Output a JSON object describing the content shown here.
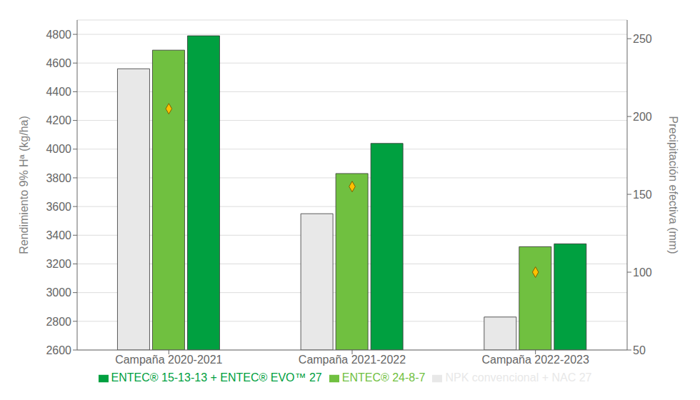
{
  "chart_data": {
    "type": "bar",
    "categories": [
      "Campaña 2020-2021",
      "Campaña 2021-2022",
      "Campaña 2022-2023"
    ],
    "series": [
      {
        "name": "NPK convencional + NAC 27",
        "color": "#e8e8e8",
        "values": [
          4560,
          3550,
          2830
        ]
      },
      {
        "name": "ENTEC® 24-8-7",
        "color": "#70c040",
        "values": [
          4690,
          3830,
          3320
        ]
      },
      {
        "name": "ENTEC® 15-13-13 + ENTEC® EVO™ 27",
        "color": "#00a040",
        "values": [
          4790,
          4040,
          3340
        ]
      },
      {
        "type": "scatter",
        "marker": "diamond",
        "color": "#ffc000",
        "axis": "y2",
        "values": [
          205,
          155,
          100
        ]
      }
    ],
    "ylim": [
      2600,
      4900
    ],
    "yticks": [
      2600,
      2800,
      3000,
      3200,
      3400,
      3600,
      3800,
      4000,
      4200,
      4400,
      4600,
      4800
    ],
    "y2lim": [
      50,
      262
    ],
    "y2ticks": [
      50,
      100,
      150,
      200,
      250
    ],
    "ylabel": "Rendimiento 9% Hª (kg/ha)",
    "y2label": "Precipitación efectiva (mm)",
    "grid": true,
    "legend": "bottom"
  }
}
